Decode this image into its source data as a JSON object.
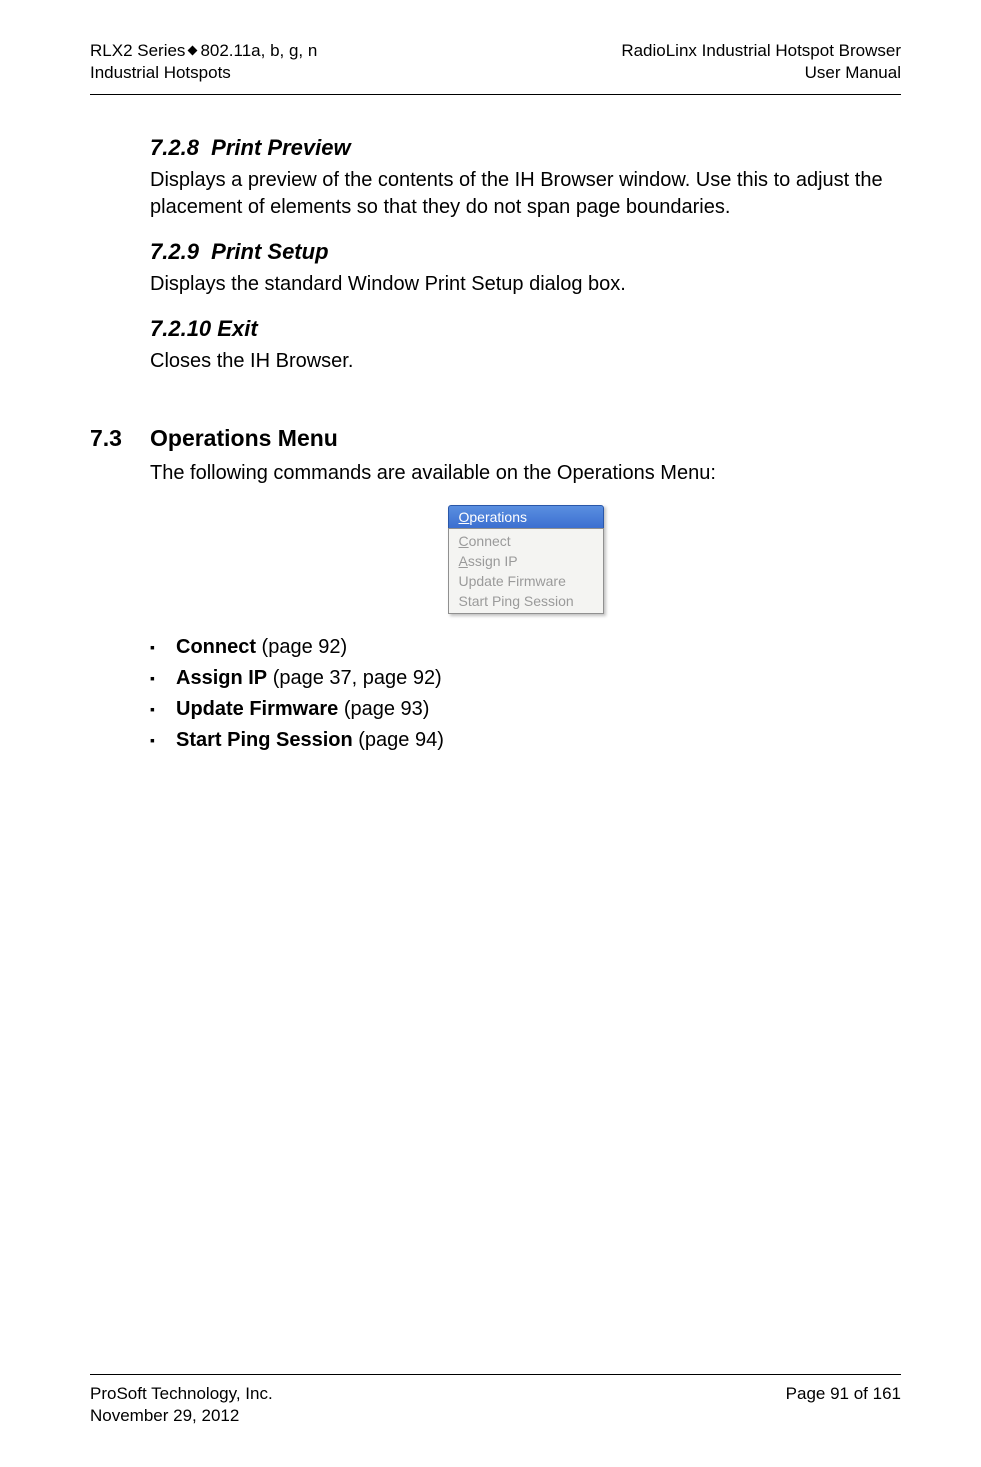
{
  "header": {
    "left_line1_a": "RLX2 Series",
    "left_line1_b": "802.11a, b, g, n",
    "left_line2": "Industrial Hotspots",
    "right_line1": "RadioLinx Industrial Hotspot Browser",
    "right_line2": "User Manual"
  },
  "sections": {
    "print_preview": {
      "num": "7.2.8",
      "title": "Print Preview",
      "body": "Displays a preview of the contents of the IH Browser window. Use this to adjust the placement of elements so that they do not span page boundaries."
    },
    "print_setup": {
      "num": "7.2.9",
      "title": "Print Setup",
      "body": "Displays the standard Window Print Setup dialog box."
    },
    "exit": {
      "num": "7.2.10",
      "title": "Exit",
      "body": "Closes the IH Browser."
    },
    "ops_menu": {
      "num": "7.3",
      "title": "Operations Menu",
      "intro": "The following commands are available on the Operations Menu:"
    }
  },
  "menu": {
    "title_pre": "O",
    "title_rest": "perations",
    "items": [
      {
        "pre": "C",
        "rest": "onnect",
        "disabled": true
      },
      {
        "pre": "A",
        "rest": "ssign IP",
        "disabled": true
      },
      {
        "pre": "",
        "rest": "Update Firmware",
        "disabled": true
      },
      {
        "pre": "",
        "rest": "Start Ping Session",
        "disabled": true
      }
    ]
  },
  "bullets": [
    {
      "bold": "Connect",
      "rest": " (page 92)"
    },
    {
      "bold": "Assign IP",
      "rest": " (page 37, page 92)"
    },
    {
      "bold": "Update Firmware",
      "rest": " (page 93)"
    },
    {
      "bold": "Start Ping Session",
      "rest": " (page 94)"
    }
  ],
  "footer": {
    "left_line1": "ProSoft Technology, Inc.",
    "left_line2": "November 29, 2012",
    "right_line1": "Page 91 of 161"
  }
}
